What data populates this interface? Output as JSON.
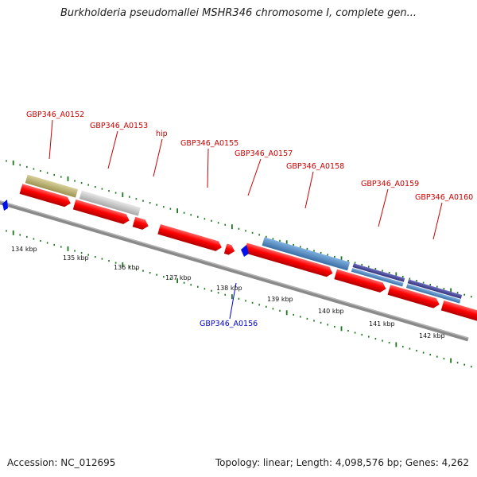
{
  "title": "Burkholderia pseudomallei MSHR346 chromosome I, complete gen...",
  "footer": {
    "accession": "Accession: NC_012695",
    "summary": "Topology: linear; Length: 4,098,576 bp; Genes: 4,262"
  },
  "colors": {
    "forward_label": "#cc0000",
    "reverse_label": "#0000cc",
    "cds": "#ff0000",
    "backbone": "#808080",
    "tick": "#1a7a1a",
    "feature_olive": "#c8bd79",
    "feature_grey": "#d4d4d4",
    "feature_steelblue": "#5b8fc9",
    "feature_indigo": "#4b4a9e",
    "marker": "#0000ee"
  },
  "scale_labels": [
    "134 kbp",
    "135 kbp",
    "136 kbp",
    "137 kbp",
    "138 kbp",
    "139 kbp",
    "140 kbp",
    "141 kbp",
    "142 kbp"
  ],
  "gene_labels": [
    {
      "name": "GBP346_A0152",
      "strand": "forward"
    },
    {
      "name": "GBP346_A0153",
      "strand": "forward"
    },
    {
      "name": "hip",
      "strand": "forward"
    },
    {
      "name": "GBP346_A0155",
      "strand": "forward"
    },
    {
      "name": "GBP346_A0157",
      "strand": "forward"
    },
    {
      "name": "GBP346_A0158",
      "strand": "forward"
    },
    {
      "name": "GBP346_A0159",
      "strand": "forward"
    },
    {
      "name": "GBP346_A0160",
      "strand": "forward"
    },
    {
      "name": "GBP346_A0156",
      "strand": "reverse"
    }
  ]
}
